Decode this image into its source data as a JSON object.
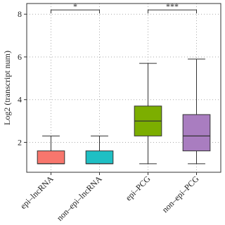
{
  "chart_data": {
    "type": "box",
    "y_label": "Log2 (transcript num)",
    "categories": [
      "epi–lncRNA",
      "non–epi–lncRNA",
      "epi–PCG",
      "non–epi–PCG"
    ],
    "colors": [
      "#f8766d",
      "#1fbfc4",
      "#7cae00",
      "#a97dc0"
    ],
    "min": [
      1,
      1,
      1,
      1
    ],
    "q1": [
      1,
      1,
      2.3,
      1.6
    ],
    "median": [
      1,
      1,
      3.0,
      2.3
    ],
    "q3": [
      1.6,
      1.6,
      3.7,
      3.3
    ],
    "max": [
      2.3,
      2.3,
      5.7,
      5.9
    ],
    "ylim": [
      0.6,
      8.5
    ],
    "yticks": [
      2,
      4,
      6,
      8
    ],
    "grid": true,
    "annotations": [
      {
        "text": "*",
        "from": "epi–lncRNA",
        "to": "non–epi–lncRNA",
        "y": 8.2
      },
      {
        "text": "***",
        "from": "epi–PCG",
        "to": "non–epi–PCG",
        "y": 8.2
      }
    ]
  }
}
